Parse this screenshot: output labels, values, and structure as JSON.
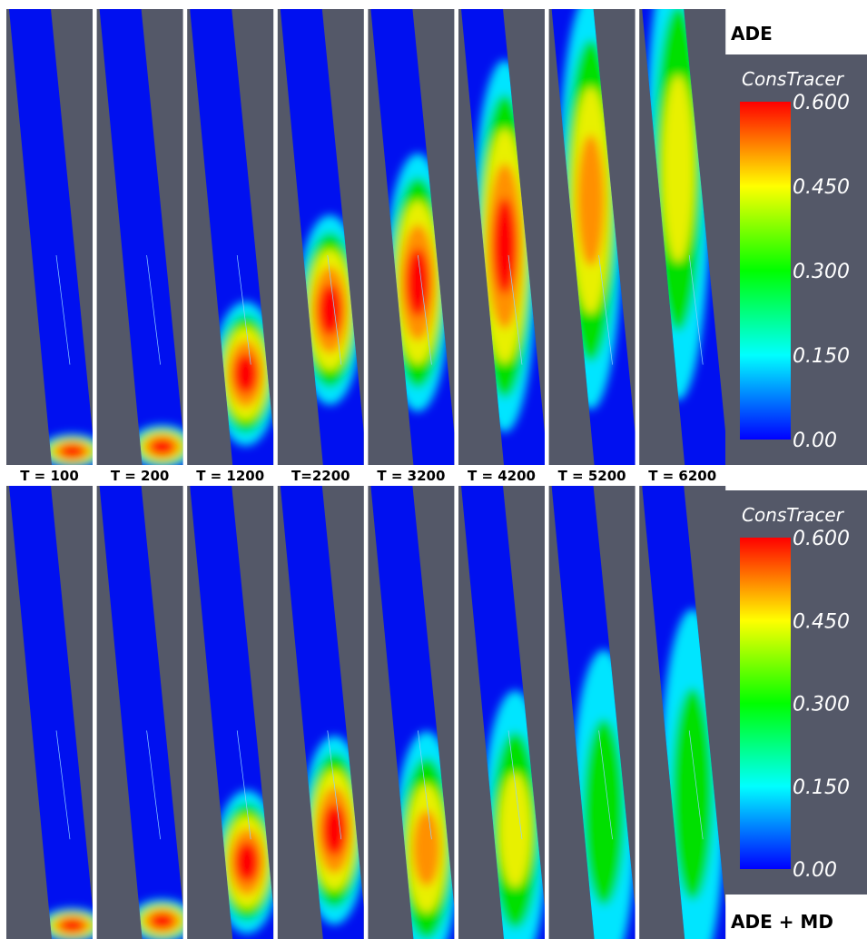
{
  "top_label": "ADE",
  "bottom_label": "ADE + MD",
  "time_labels": [
    "T = 100",
    "T = 200",
    "T = 1200",
    "T=2200",
    "T = 3200",
    "T = 4200",
    "T = 5200",
    "T = 6200"
  ],
  "colorbars": [
    {
      "title": "ConsTracer",
      "ticks": [
        "0.600",
        "0.450",
        "0.300",
        "0.150",
        "0.00"
      ]
    },
    {
      "title": "ConsTracer",
      "ticks": [
        "0.600",
        "0.450",
        "0.300",
        "0.150",
        "0.00"
      ]
    }
  ]
}
